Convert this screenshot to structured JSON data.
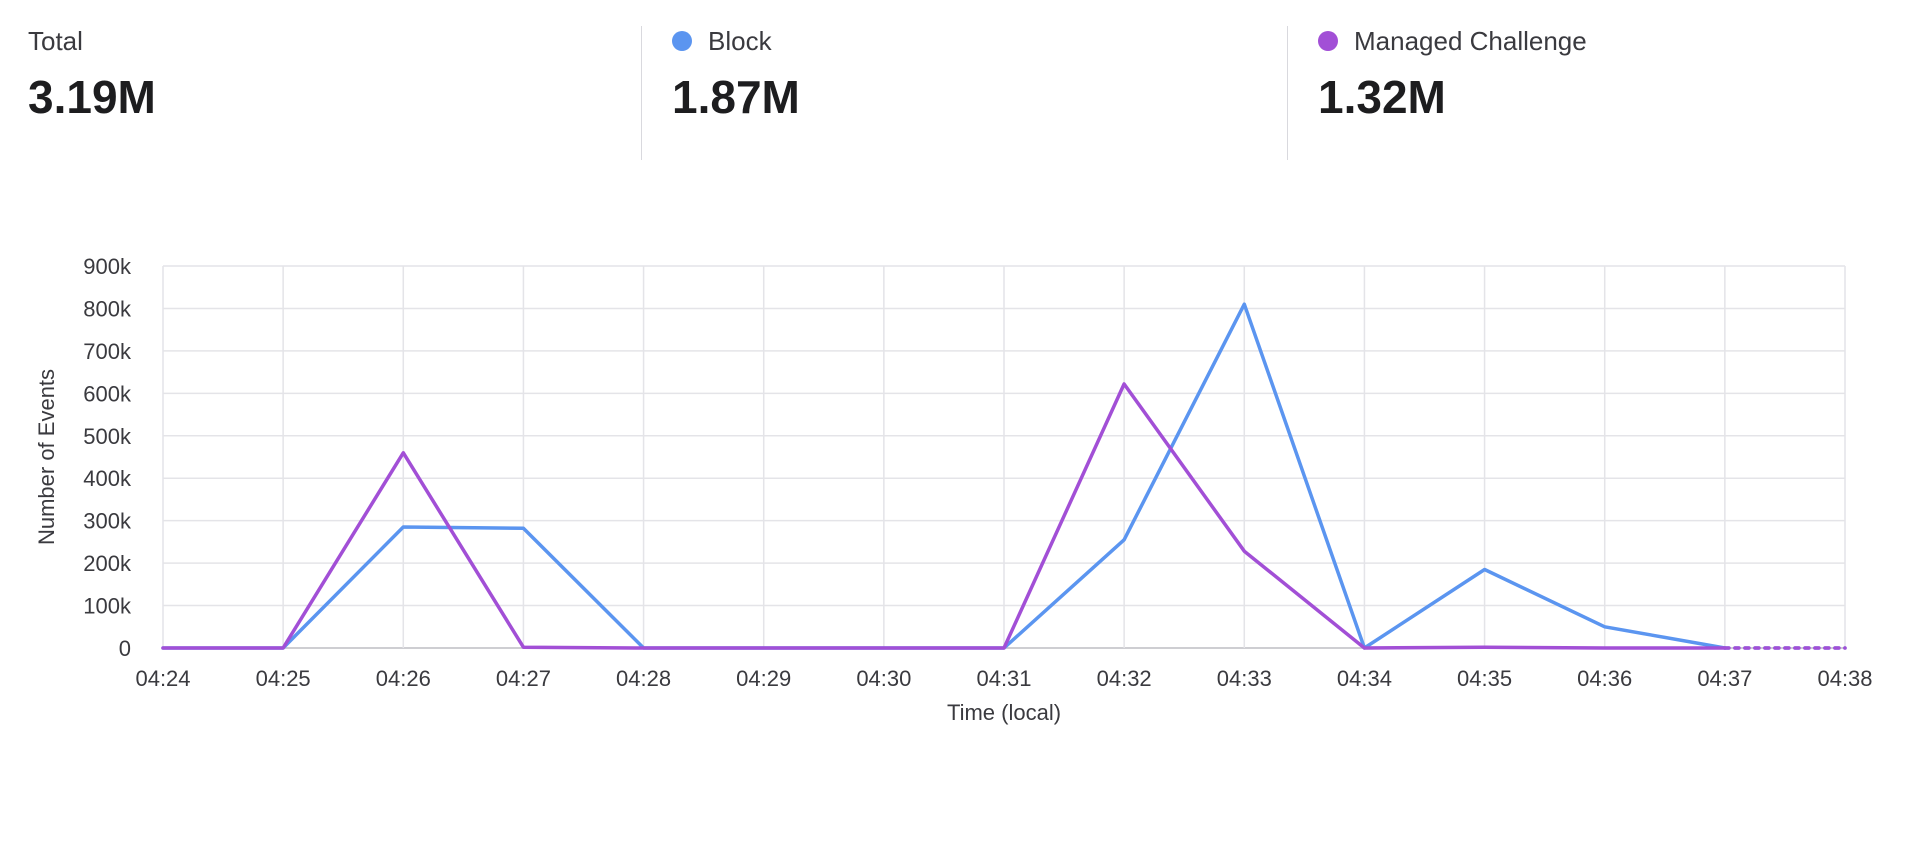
{
  "stats": [
    {
      "label": "Total",
      "value": "3.19M",
      "color": ""
    },
    {
      "label": "Block",
      "value": "1.87M",
      "color": "#5b95f0"
    },
    {
      "label": "Managed Challenge",
      "value": "1.32M",
      "color": "#a24fd6"
    }
  ],
  "chart_data": {
    "type": "line",
    "x": [
      "04:24",
      "04:25",
      "04:26",
      "04:27",
      "04:28",
      "04:29",
      "04:30",
      "04:31",
      "04:32",
      "04:33",
      "04:34",
      "04:35",
      "04:36",
      "04:37",
      "04:38"
    ],
    "series": [
      {
        "name": "Block",
        "color": "#5b95f0",
        "values": [
          0,
          0,
          285000,
          282000,
          0,
          0,
          0,
          0,
          255000,
          810000,
          0,
          185000,
          50000,
          0,
          0
        ],
        "dotted_from_index": 13
      },
      {
        "name": "Managed Challenge",
        "color": "#a24fd6",
        "values": [
          0,
          0,
          460000,
          2000,
          0,
          0,
          0,
          0,
          622000,
          228000,
          0,
          2000,
          0,
          0,
          0
        ],
        "dotted_from_index": 13
      }
    ],
    "yticks": [
      0,
      100000,
      200000,
      300000,
      400000,
      500000,
      600000,
      700000,
      800000,
      900000
    ],
    "ytick_labels": [
      "0",
      "100k",
      "200k",
      "300k",
      "400k",
      "500k",
      "600k",
      "700k",
      "800k",
      "900k"
    ],
    "ylim": [
      0,
      900000
    ],
    "xlabel": "Time (local)",
    "ylabel": "Number of Events",
    "grid": true
  }
}
